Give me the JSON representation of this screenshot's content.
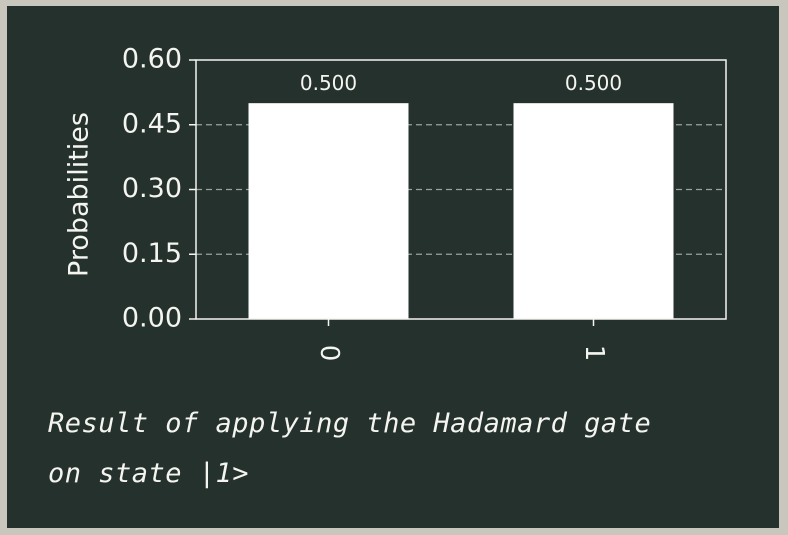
{
  "colors": {
    "board": "#25312c",
    "frame": "#c9c6bd",
    "chalk": "#f4f4f0",
    "bar": "#ffffff",
    "grid": "#9aa39e"
  },
  "chart_data": {
    "type": "bar",
    "categories": [
      "0",
      "1"
    ],
    "values": [
      0.5,
      0.5
    ],
    "data_labels": [
      "0.500",
      "0.500"
    ],
    "title": "",
    "xlabel": "",
    "ylabel": "Probabilities",
    "ylim": [
      0,
      0.6
    ],
    "yticks": [
      0.0,
      0.15,
      0.3,
      0.45,
      0.6
    ],
    "ytick_labels": [
      "0.00",
      "0.15",
      "0.30",
      "0.45",
      "0.60"
    ],
    "xtick_rotation": "vertical",
    "grid": "horizontal dashed",
    "legend": "none"
  },
  "caption": {
    "line1": "Result of applying the Hadamard gate",
    "line2": "on state |1>"
  }
}
